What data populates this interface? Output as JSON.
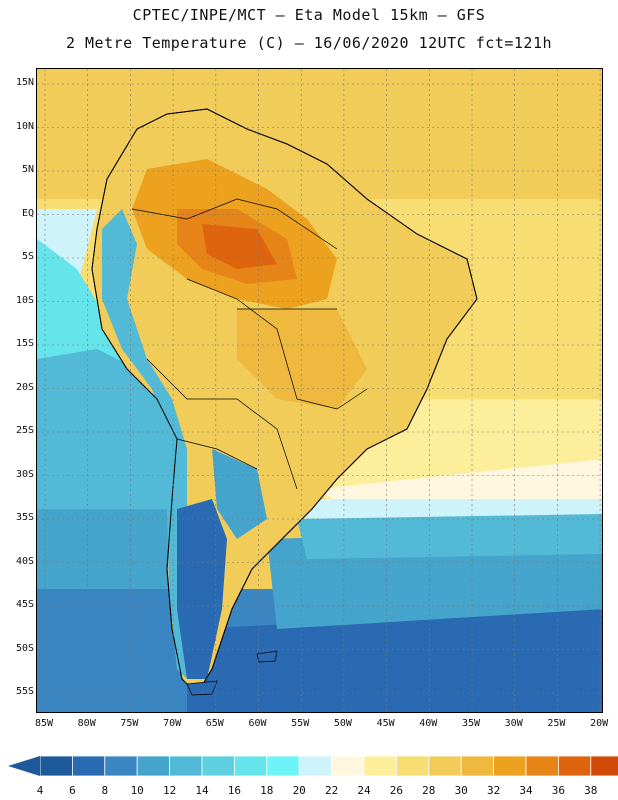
{
  "header": {
    "line1": "CPTEC/INPE/MCT –  Eta Model 15km – GFS",
    "line2": "2 Metre Temperature (C) – 16/06/2020 12UTC fct=121h"
  },
  "map": {
    "lat_labels": [
      "15N",
      "10N",
      "5N",
      "EQ",
      "5S",
      "10S",
      "15S",
      "20S",
      "25S",
      "30S",
      "35S",
      "40S",
      "45S",
      "50S",
      "55S"
    ],
    "lon_labels": [
      "85W",
      "80W",
      "75W",
      "70W",
      "65W",
      "60W",
      "55W",
      "50W",
      "45W",
      "40W",
      "35W",
      "30W",
      "25W",
      "20W"
    ]
  },
  "legend": {
    "levels": [
      "4",
      "6",
      "8",
      "10",
      "12",
      "14",
      "16",
      "18",
      "20",
      "22",
      "24",
      "26",
      "28",
      "30",
      "32",
      "34",
      "36",
      "38"
    ],
    "colors": [
      "#1e5a9b",
      "#2a6ab3",
      "#3a86c2",
      "#44a4cc",
      "#52bad6",
      "#5ed0e0",
      "#66e4ec",
      "#6ef4f6",
      "#cff3fa",
      "#fff7e0",
      "#fdee9c",
      "#f7dd72",
      "#f1cc58",
      "#eeb93e",
      "#eca21e",
      "#e68418",
      "#de640e",
      "#d04a0a",
      "#b83a06"
    ]
  }
}
